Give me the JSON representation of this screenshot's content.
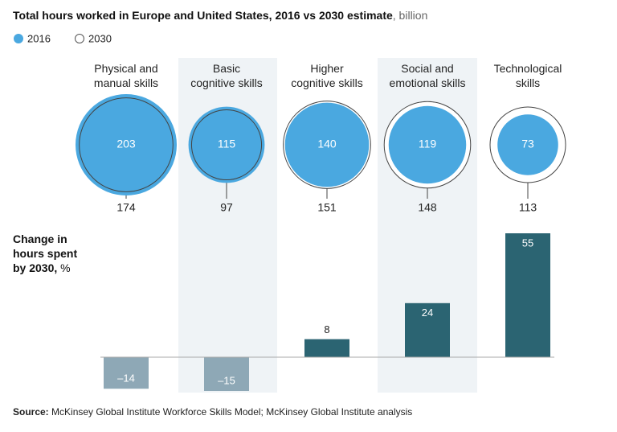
{
  "chart_data": [
    {
      "type": "bubble",
      "title": "Total hours worked in Europe and United States, 2016 vs 2030 estimate",
      "title_unit": ", billion",
      "categories": [
        "Physical and\nmanual skills",
        "Basic\ncognitive skills",
        "Higher\ncognitive skills",
        "Social and\nemotional skills",
        "Technological\nskills"
      ],
      "series": [
        {
          "name": "2016",
          "color": "#4aa8e0",
          "values": [
            203,
            115,
            140,
            119,
            73
          ]
        },
        {
          "name": "2030",
          "color": "#ffffff",
          "values": [
            174,
            97,
            151,
            148,
            113
          ]
        }
      ]
    },
    {
      "type": "bar",
      "title": "Change in\nhours spent\nby 2030,",
      "title_unit": " %",
      "values": [
        -14,
        -15,
        8,
        24,
        55
      ],
      "value_labels": [
        "–14",
        "–15",
        "8",
        "24",
        "55"
      ],
      "colors": [
        "#8ea8b6",
        "#8ea8b6",
        "#2b6472",
        "#2b6472",
        "#2b6472"
      ],
      "ylim": [
        -15,
        55
      ]
    }
  ],
  "source": {
    "label": "Source:",
    "text": " McKinsey Global Institute Workforce Skills Model; McKinsey Global Institute analysis"
  }
}
